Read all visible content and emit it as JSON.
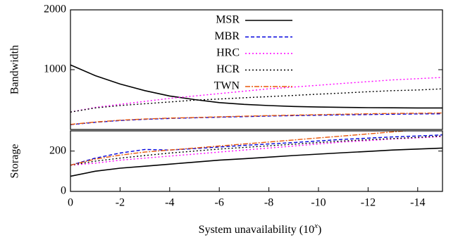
{
  "chart_data": [
    {
      "type": "line",
      "ylabel": "Bandwidth",
      "x": [
        0,
        -1,
        -2,
        -3,
        -4,
        -5,
        -6,
        -7,
        -8,
        -9,
        -10,
        -11,
        -12,
        -13,
        -14,
        -15
      ],
      "xlim": [
        0,
        -15
      ],
      "ylim": [
        0,
        2000
      ],
      "yticks": [
        1000,
        2000
      ],
      "legend": "top-center",
      "series": [
        {
          "name": "MSR",
          "color": "#000000",
          "dash": "solid",
          "values": [
            1080,
            900,
            760,
            650,
            560,
            500,
            450,
            420,
            400,
            385,
            375,
            370,
            365,
            362,
            360,
            360
          ]
        },
        {
          "name": "MBR",
          "color": "#0000dd",
          "dash": "dashed",
          "values": [
            80,
            120,
            150,
            170,
            185,
            195,
            205,
            215,
            225,
            232,
            238,
            245,
            250,
            255,
            260,
            262
          ]
        },
        {
          "name": "HRC",
          "color": "#ff00ff",
          "dash": "dotted",
          "values": [
            290,
            370,
            420,
            470,
            520,
            560,
            600,
            640,
            680,
            710,
            740,
            770,
            800,
            830,
            850,
            870
          ]
        },
        {
          "name": "HCR",
          "color": "#000000",
          "dash": "dotted",
          "values": [
            290,
            360,
            400,
            430,
            460,
            490,
            510,
            530,
            550,
            570,
            590,
            610,
            630,
            650,
            660,
            680
          ]
        },
        {
          "name": "TWN",
          "color": "#e8590c",
          "dash": "dashdot",
          "values": [
            85,
            125,
            155,
            175,
            190,
            200,
            212,
            222,
            232,
            240,
            248,
            255,
            262,
            268,
            272,
            276
          ]
        }
      ]
    },
    {
      "type": "line",
      "ylabel": "Storage",
      "xlabel_parts": [
        "System unavailability (10",
        "x",
        ")"
      ],
      "x": [
        0,
        -1,
        -2,
        -3,
        -4,
        -5,
        -6,
        -7,
        -8,
        -9,
        -10,
        -11,
        -12,
        -13,
        -14,
        -15
      ],
      "xlim": [
        0,
        -15
      ],
      "xticks": [
        0,
        -2,
        -4,
        -6,
        -8,
        -10,
        -12,
        -14
      ],
      "ylim": [
        0,
        300
      ],
      "yticks": [
        0,
        200
      ],
      "series": [
        {
          "name": "MSR",
          "color": "#000000",
          "dash": "solid",
          "values": [
            75,
            100,
            115,
            125,
            135,
            145,
            155,
            162,
            170,
            178,
            185,
            192,
            198,
            205,
            210,
            215
          ]
        },
        {
          "name": "MBR",
          "color": "#0000dd",
          "dash": "dashed",
          "values": [
            130,
            165,
            190,
            208,
            205,
            212,
            220,
            228,
            235,
            242,
            250,
            258,
            264,
            270,
            275,
            280
          ]
        },
        {
          "name": "HRC",
          "color": "#ff00ff",
          "dash": "dotted",
          "values": [
            130,
            140,
            155,
            165,
            175,
            185,
            195,
            205,
            215,
            225,
            235,
            245,
            252,
            260,
            265,
            272
          ]
        },
        {
          "name": "HCR",
          "color": "#000000",
          "dash": "dotted",
          "values": [
            130,
            150,
            165,
            178,
            190,
            200,
            210,
            218,
            226,
            234,
            242,
            250,
            256,
            262,
            268,
            275
          ]
        },
        {
          "name": "TWN",
          "color": "#e8590c",
          "dash": "dashdot",
          "values": [
            130,
            160,
            180,
            195,
            205,
            215,
            225,
            235,
            245,
            255,
            265,
            275,
            285,
            295,
            305,
            315
          ]
        }
      ]
    }
  ]
}
